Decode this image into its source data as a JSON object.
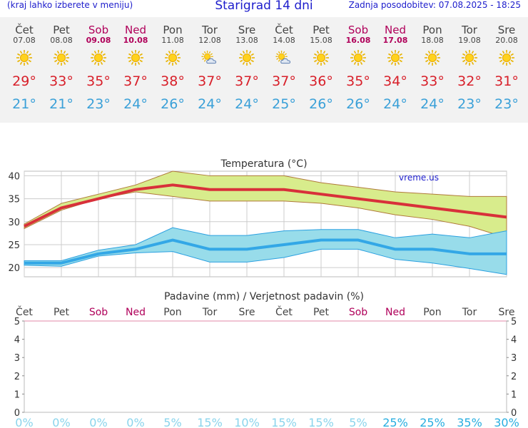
{
  "header": {
    "hint": "(kraj lahko izberete v meniju)",
    "title": "Starigrad 14 dni",
    "updated": "Zadnja posodobitev: 07.08.2025 - 18:25"
  },
  "days": [
    {
      "name": "Čet",
      "date": "07.08",
      "icon": "sun-icon",
      "tmax": "29°",
      "tmin": "21°",
      "weekend": false
    },
    {
      "name": "Pet",
      "date": "08.08",
      "icon": "sun-icon",
      "tmax": "33°",
      "tmin": "21°",
      "weekend": false
    },
    {
      "name": "Sob",
      "date": "09.08",
      "icon": "sun-icon",
      "tmax": "35°",
      "tmin": "23°",
      "weekend": true
    },
    {
      "name": "Ned",
      "date": "10.08",
      "icon": "sun-icon",
      "tmax": "37°",
      "tmin": "24°",
      "weekend": true
    },
    {
      "name": "Pon",
      "date": "11.08",
      "icon": "sun-icon",
      "tmax": "38°",
      "tmin": "26°",
      "weekend": false
    },
    {
      "name": "Tor",
      "date": "12.08",
      "icon": "sun-cloud-icon",
      "tmax": "37°",
      "tmin": "24°",
      "weekend": false
    },
    {
      "name": "Sre",
      "date": "13.08",
      "icon": "sun-icon",
      "tmax": "37°",
      "tmin": "24°",
      "weekend": false
    },
    {
      "name": "Čet",
      "date": "14.08",
      "icon": "sun-cloud-icon",
      "tmax": "37°",
      "tmin": "25°",
      "weekend": false
    },
    {
      "name": "Pet",
      "date": "15.08",
      "icon": "sun-icon",
      "tmax": "36°",
      "tmin": "26°",
      "weekend": false
    },
    {
      "name": "Sob",
      "date": "16.08",
      "icon": "sun-icon",
      "tmax": "35°",
      "tmin": "26°",
      "weekend": true
    },
    {
      "name": "Ned",
      "date": "17.08",
      "icon": "sun-icon",
      "tmax": "34°",
      "tmin": "24°",
      "weekend": true
    },
    {
      "name": "Pon",
      "date": "18.08",
      "icon": "sun-icon",
      "tmax": "33°",
      "tmin": "24°",
      "weekend": false
    },
    {
      "name": "Tor",
      "date": "19.08",
      "icon": "sun-icon",
      "tmax": "32°",
      "tmin": "23°",
      "weekend": false
    },
    {
      "name": "Sre",
      "date": "20.08",
      "icon": "sun-icon",
      "tmax": "31°",
      "tmin": "23°",
      "weekend": false
    }
  ],
  "colors": {
    "title": "#1d1dcc",
    "max_line": "#d8303a",
    "max_band": "#d8ec8c",
    "min_line": "#33a7e6",
    "min_band": "#98dcea",
    "weekend": "#b0005a",
    "precip_prob": "#8ad4ec",
    "precip_prob_strong": "#28aee0"
  },
  "chart_data": [
    {
      "type": "line",
      "title": "Temperatura (°C)",
      "watermark": "vreme.us",
      "ylim": [
        18,
        41
      ],
      "yticks": [
        20,
        25,
        30,
        35,
        40
      ],
      "categories": [
        "Čet",
        "Pet",
        "Sob",
        "Ned",
        "Pon",
        "Tor",
        "Sre",
        "Čet",
        "Pet",
        "Sob",
        "Ned",
        "Pon",
        "Tor",
        "Sre"
      ],
      "series": [
        {
          "name": "max",
          "values": [
            29,
            33,
            35,
            37,
            38,
            37,
            37,
            37,
            36,
            35,
            34,
            33,
            32,
            31
          ]
        },
        {
          "name": "max_high",
          "values": [
            29.5,
            34,
            36,
            38,
            41,
            40,
            40,
            40,
            38.5,
            37.5,
            36.5,
            36,
            35.5,
            35.5
          ]
        },
        {
          "name": "max_low",
          "values": [
            28.5,
            32.5,
            35,
            36.5,
            35.5,
            34.5,
            34.5,
            34.5,
            34,
            33,
            31.5,
            30.5,
            29,
            26.5
          ]
        },
        {
          "name": "min",
          "values": [
            21,
            21,
            23,
            24,
            26,
            24,
            24,
            25,
            26,
            26,
            24,
            24,
            23,
            23
          ]
        },
        {
          "name": "min_high",
          "values": [
            21.5,
            21.5,
            23.8,
            25,
            28.7,
            27,
            27,
            28,
            28.3,
            28.3,
            26.5,
            27.3,
            26.5,
            28
          ]
        },
        {
          "name": "min_low",
          "values": [
            20.5,
            20.3,
            22.5,
            23.2,
            23.5,
            21.2,
            21.2,
            22.2,
            24,
            24,
            21.8,
            21,
            19.8,
            18.5
          ]
        }
      ]
    },
    {
      "type": "bar",
      "title": "Padavine (mm) / Verjetnost padavin (%)",
      "ylim": [
        0,
        5
      ],
      "yticks": [
        0,
        1,
        2,
        3,
        4,
        5
      ],
      "categories": [
        "Čet",
        "Pet",
        "Sob",
        "Ned",
        "Pon",
        "Tor",
        "Sre",
        "Čet",
        "Pet",
        "Sob",
        "Ned",
        "Pon",
        "Tor",
        "Sre"
      ],
      "precip_mm": [
        0,
        0,
        0,
        0,
        0,
        0,
        0,
        0,
        0,
        0,
        0,
        0,
        0,
        0
      ],
      "probability": [
        "0%",
        "0%",
        "0%",
        "0%",
        "5%",
        "15%",
        "10%",
        "15%",
        "15%",
        "5%",
        "25%",
        "25%",
        "35%",
        "30%"
      ]
    }
  ]
}
